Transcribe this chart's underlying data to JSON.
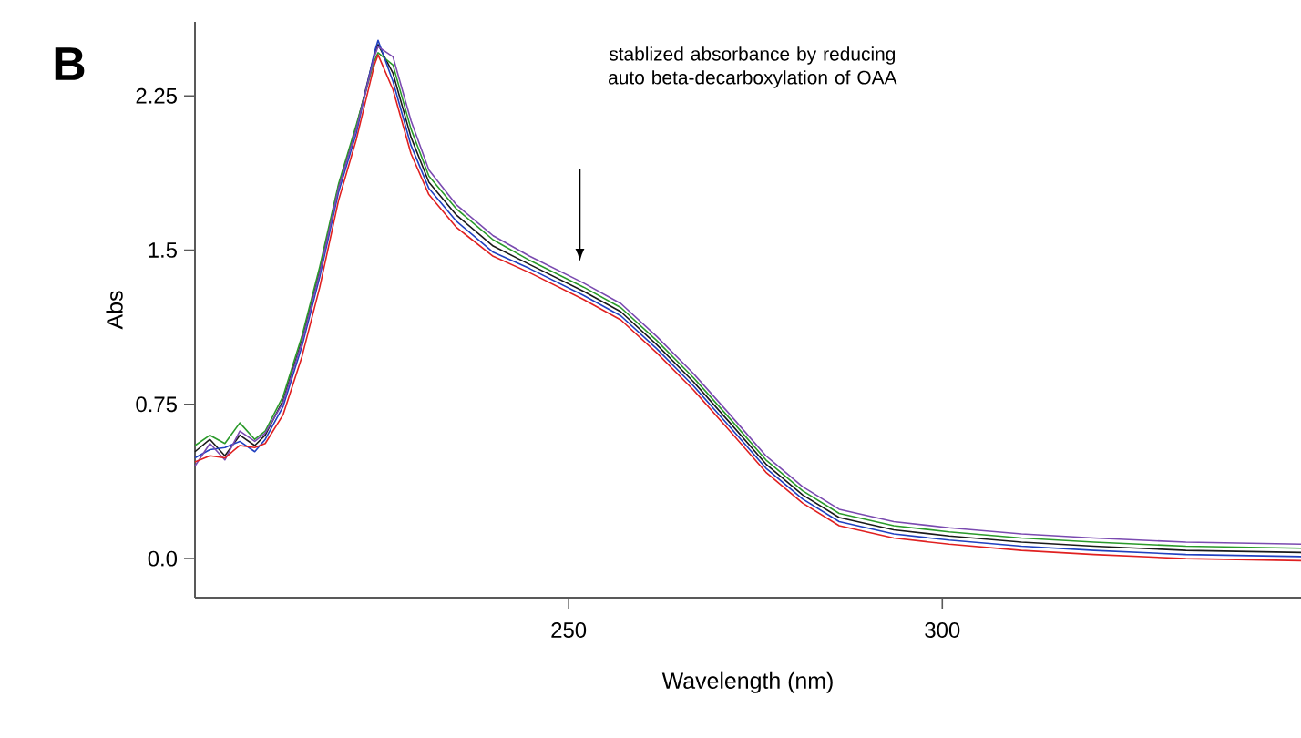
{
  "chart_data": {
    "type": "line",
    "xlabel": "Wavelength (nm)",
    "ylabel": "Abs",
    "x": [
      200,
      202,
      204,
      206,
      208,
      209.4,
      211.8,
      214.3,
      216.7,
      219.2,
      221.6,
      224,
      224.5,
      226.5,
      228.9,
      231.3,
      235,
      239.9,
      244.8,
      252,
      257,
      261.8,
      266.7,
      271.6,
      276.4,
      281.3,
      286.2,
      293.5,
      300.9,
      310.6,
      320.3,
      332.6,
      348
    ],
    "series": [
      {
        "color": "#1a1a1a",
        "values": [
          0.52,
          0.58,
          0.5,
          0.6,
          0.55,
          0.6,
          0.77,
          1.06,
          1.4,
          1.81,
          2.1,
          2.45,
          2.5,
          2.36,
          2.05,
          1.83,
          1.67,
          1.52,
          1.43,
          1.3,
          1.2,
          1.04,
          0.86,
          0.66,
          0.46,
          0.31,
          0.2,
          0.14,
          0.11,
          0.08,
          0.06,
          0.04,
          0.03
        ]
      },
      {
        "color": "#2a9a2a",
        "values": [
          0.55,
          0.6,
          0.56,
          0.66,
          0.58,
          0.62,
          0.79,
          1.08,
          1.42,
          1.82,
          2.11,
          2.42,
          2.46,
          2.4,
          2.09,
          1.86,
          1.7,
          1.55,
          1.45,
          1.32,
          1.22,
          1.06,
          0.88,
          0.68,
          0.48,
          0.33,
          0.22,
          0.16,
          0.13,
          0.1,
          0.08,
          0.06,
          0.05
        ]
      },
      {
        "color": "#2040c0",
        "values": [
          0.49,
          0.53,
          0.54,
          0.57,
          0.52,
          0.58,
          0.74,
          1.03,
          1.37,
          1.78,
          2.07,
          2.46,
          2.52,
          2.32,
          2.01,
          1.8,
          1.64,
          1.49,
          1.41,
          1.28,
          1.18,
          1.02,
          0.84,
          0.64,
          0.44,
          0.29,
          0.18,
          0.12,
          0.09,
          0.06,
          0.04,
          0.02,
          0.01
        ]
      },
      {
        "color": "#7a4ab0",
        "values": [
          0.45,
          0.56,
          0.48,
          0.62,
          0.57,
          0.61,
          0.76,
          1.05,
          1.39,
          1.8,
          2.09,
          2.44,
          2.49,
          2.44,
          2.13,
          1.89,
          1.72,
          1.57,
          1.47,
          1.34,
          1.24,
          1.08,
          0.9,
          0.7,
          0.5,
          0.35,
          0.24,
          0.18,
          0.15,
          0.12,
          0.1,
          0.08,
          0.07
        ]
      },
      {
        "color": "#e02020",
        "values": [
          0.47,
          0.5,
          0.49,
          0.55,
          0.54,
          0.56,
          0.7,
          0.98,
          1.32,
          1.74,
          2.04,
          2.4,
          2.45,
          2.28,
          1.97,
          1.77,
          1.61,
          1.47,
          1.39,
          1.26,
          1.16,
          1.0,
          0.82,
          0.62,
          0.42,
          0.27,
          0.16,
          0.1,
          0.07,
          0.04,
          0.02,
          0.0,
          -0.01
        ]
      }
    ],
    "xlim": [
      200,
      348
    ],
    "ylim": [
      -0.19,
      2.61
    ],
    "xticks": [
      250,
      300
    ],
    "yticks": [
      {
        "value": 0,
        "label": "0.0"
      },
      0.75,
      1.5,
      2.25
    ],
    "line_style": "solid",
    "marker": "none",
    "annotations": [
      "B",
      "stablized absorbance by reducing auto beta-decarboxylation of OAA"
    ]
  }
}
